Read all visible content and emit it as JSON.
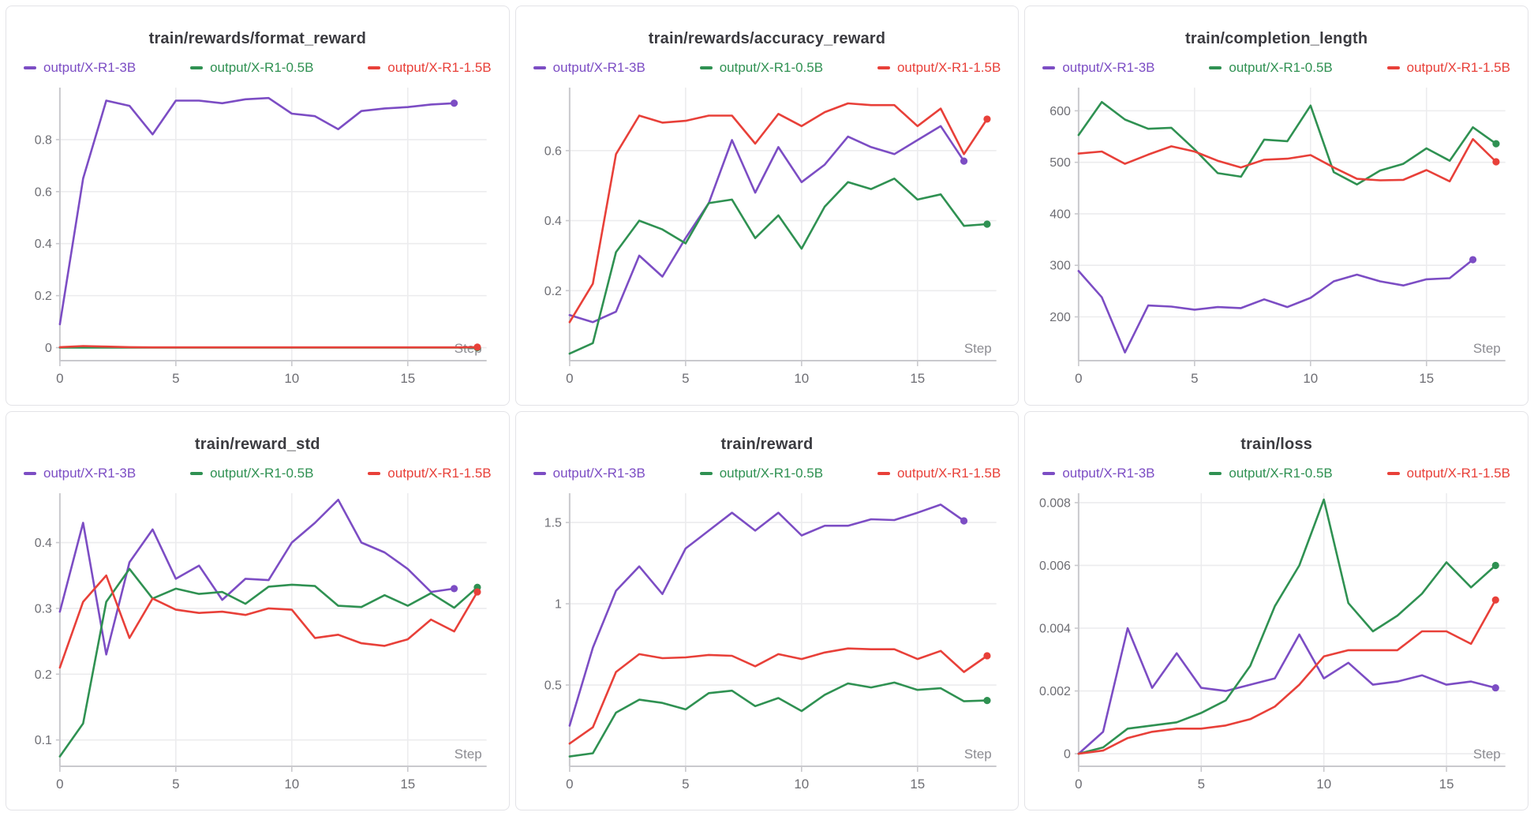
{
  "colors": {
    "purple": "#7C4DC4",
    "green": "#2F9152",
    "red": "#E84039",
    "grid": "#ececee",
    "axis": "#c9c9cd",
    "tick_text": "#6e6e74",
    "step_text": "#8c8c92",
    "title_text": "#3b3b40",
    "card_border": "#e3e3e7"
  },
  "legend_labels": [
    "output/X-R1-3B",
    "output/X-R1-0.5B",
    "output/X-R1-1.5B"
  ],
  "chart_data": [
    {
      "type": "line",
      "title": "train/rewards/format_reward",
      "xlabel": "Step",
      "xticks": [
        0,
        5,
        10,
        15
      ],
      "xlim": [
        0,
        18.4
      ],
      "ylim": [
        -0.05,
        1.0
      ],
      "yticks": [
        [
          0,
          "0"
        ],
        [
          0.2,
          "0.2"
        ],
        [
          0.4,
          "0.4"
        ],
        [
          0.6,
          "0.6"
        ],
        [
          0.8,
          "0.8"
        ]
      ],
      "series": [
        {
          "name": "output/X-R1-3B",
          "color_key": "purple",
          "values": [
            0.09,
            0.65,
            0.95,
            0.93,
            0.82,
            0.95,
            0.95,
            0.94,
            0.955,
            0.96,
            0.9,
            0.89,
            0.84,
            0.91,
            0.92,
            0.925,
            0.935,
            0.94
          ]
        },
        {
          "name": "output/X-R1-0.5B",
          "color_key": "green",
          "values": [
            0,
            0,
            0,
            0,
            0,
            0,
            0,
            0,
            0,
            0,
            0,
            0,
            0,
            0,
            0,
            0,
            0,
            0,
            0
          ]
        },
        {
          "name": "output/X-R1-1.5B",
          "color_key": "red",
          "values": [
            0.002,
            0.006,
            0.004,
            0.002,
            0.001,
            0.001,
            0.001,
            0.001,
            0.001,
            0.001,
            0.001,
            0.001,
            0.001,
            0.001,
            0.001,
            0.001,
            0.001,
            0.001,
            0.002
          ]
        }
      ]
    },
    {
      "type": "line",
      "title": "train/rewards/accuracy_reward",
      "xlabel": "Step",
      "xticks": [
        0,
        5,
        10,
        15
      ],
      "xlim": [
        0,
        18.4
      ],
      "ylim": [
        0,
        0.78
      ],
      "yticks": [
        [
          0.2,
          "0.2"
        ],
        [
          0.4,
          "0.4"
        ],
        [
          0.6,
          "0.6"
        ]
      ],
      "series": [
        {
          "name": "output/X-R1-3B",
          "color_key": "purple",
          "values": [
            0.13,
            0.11,
            0.14,
            0.3,
            0.24,
            0.35,
            0.45,
            0.63,
            0.48,
            0.61,
            0.51,
            0.56,
            0.64,
            0.61,
            0.59,
            0.63,
            0.67,
            0.57
          ]
        },
        {
          "name": "output/X-R1-0.5B",
          "color_key": "green",
          "values": [
            0.02,
            0.05,
            0.31,
            0.4,
            0.375,
            0.335,
            0.45,
            0.46,
            0.35,
            0.415,
            0.32,
            0.44,
            0.51,
            0.49,
            0.52,
            0.46,
            0.475,
            0.385,
            0.39
          ]
        },
        {
          "name": "output/X-R1-1.5B",
          "color_key": "red",
          "values": [
            0.11,
            0.22,
            0.59,
            0.7,
            0.68,
            0.685,
            0.7,
            0.7,
            0.62,
            0.705,
            0.67,
            0.71,
            0.735,
            0.73,
            0.73,
            0.67,
            0.72,
            0.59,
            0.69
          ]
        }
      ]
    },
    {
      "type": "line",
      "title": "train/completion_length",
      "xlabel": "Step",
      "xticks": [
        0,
        5,
        10,
        15
      ],
      "xlim": [
        0,
        18.4
      ],
      "ylim": [
        115,
        645
      ],
      "yticks": [
        [
          200,
          "200"
        ],
        [
          300,
          "300"
        ],
        [
          400,
          "400"
        ],
        [
          500,
          "500"
        ],
        [
          600,
          "600"
        ]
      ],
      "series": [
        {
          "name": "output/X-R1-3B",
          "color_key": "purple",
          "values": [
            289,
            238,
            131,
            222,
            220,
            214,
            219,
            217,
            234,
            219,
            237,
            269,
            282,
            269,
            261,
            273,
            275,
            311
          ]
        },
        {
          "name": "output/X-R1-0.5B",
          "color_key": "green",
          "values": [
            553,
            617,
            583,
            565,
            567,
            525,
            479,
            472,
            544,
            541,
            610,
            481,
            457,
            484,
            497,
            527,
            503,
            568,
            536
          ]
        },
        {
          "name": "output/X-R1-1.5B",
          "color_key": "red",
          "values": [
            517,
            521,
            497,
            515,
            531,
            521,
            503,
            490,
            505,
            507,
            514,
            490,
            468,
            465,
            466,
            485,
            463,
            545,
            501
          ]
        }
      ]
    },
    {
      "type": "line",
      "title": "train/reward_std",
      "xlabel": "Step",
      "xticks": [
        0,
        5,
        10,
        15
      ],
      "xlim": [
        0,
        18.4
      ],
      "ylim": [
        0.06,
        0.475
      ],
      "yticks": [
        [
          0.1,
          "0.1"
        ],
        [
          0.2,
          "0.2"
        ],
        [
          0.3,
          "0.3"
        ],
        [
          0.4,
          "0.4"
        ]
      ],
      "series": [
        {
          "name": "output/X-R1-3B",
          "color_key": "purple",
          "values": [
            0.295,
            0.43,
            0.23,
            0.37,
            0.42,
            0.345,
            0.365,
            0.313,
            0.345,
            0.343,
            0.4,
            0.43,
            0.465,
            0.4,
            0.385,
            0.36,
            0.325,
            0.33
          ]
        },
        {
          "name": "output/X-R1-0.5B",
          "color_key": "green",
          "values": [
            0.075,
            0.125,
            0.31,
            0.36,
            0.315,
            0.33,
            0.322,
            0.325,
            0.307,
            0.333,
            0.336,
            0.334,
            0.304,
            0.302,
            0.32,
            0.304,
            0.323,
            0.301,
            0.332
          ]
        },
        {
          "name": "output/X-R1-1.5B",
          "color_key": "red",
          "values": [
            0.21,
            0.31,
            0.35,
            0.255,
            0.315,
            0.298,
            0.293,
            0.295,
            0.29,
            0.3,
            0.298,
            0.255,
            0.26,
            0.247,
            0.243,
            0.253,
            0.283,
            0.265,
            0.325
          ]
        }
      ]
    },
    {
      "type": "line",
      "title": "train/reward",
      "xlabel": "Step",
      "xticks": [
        0,
        5,
        10,
        15
      ],
      "xlim": [
        0,
        18.4
      ],
      "ylim": [
        0,
        1.68
      ],
      "yticks": [
        [
          0.5,
          "0.5"
        ],
        [
          1,
          "1"
        ],
        [
          1.5,
          "1.5"
        ]
      ],
      "series": [
        {
          "name": "output/X-R1-3B",
          "color_key": "purple",
          "values": [
            0.25,
            0.73,
            1.08,
            1.23,
            1.06,
            1.34,
            1.45,
            1.56,
            1.45,
            1.56,
            1.42,
            1.48,
            1.48,
            1.52,
            1.515,
            1.56,
            1.61,
            1.51
          ]
        },
        {
          "name": "output/X-R1-0.5B",
          "color_key": "green",
          "values": [
            0.06,
            0.08,
            0.33,
            0.41,
            0.39,
            0.35,
            0.45,
            0.465,
            0.37,
            0.42,
            0.34,
            0.44,
            0.51,
            0.485,
            0.515,
            0.47,
            0.48,
            0.4,
            0.405
          ]
        },
        {
          "name": "output/X-R1-1.5B",
          "color_key": "red",
          "values": [
            0.14,
            0.24,
            0.58,
            0.69,
            0.665,
            0.67,
            0.685,
            0.68,
            0.615,
            0.69,
            0.66,
            0.7,
            0.725,
            0.72,
            0.72,
            0.66,
            0.71,
            0.58,
            0.68
          ]
        }
      ]
    },
    {
      "type": "line",
      "title": "train/loss",
      "xlabel": "Step",
      "xticks": [
        0,
        5,
        10,
        15
      ],
      "xlim": [
        0,
        17.4
      ],
      "ylim": [
        -0.0004,
        0.0083
      ],
      "yticks": [
        [
          0,
          "0"
        ],
        [
          0.002,
          "0.002"
        ],
        [
          0.004,
          "0.004"
        ],
        [
          0.006,
          "0.006"
        ],
        [
          0.008,
          "0.008"
        ]
      ],
      "series": [
        {
          "name": "output/X-R1-3B",
          "color_key": "purple",
          "values": [
            0,
            0.0007,
            0.004,
            0.0021,
            0.0032,
            0.0021,
            0.002,
            0.0022,
            0.0024,
            0.0038,
            0.0024,
            0.0029,
            0.0022,
            0.0023,
            0.0025,
            0.0022,
            0.0023,
            0.0021
          ]
        },
        {
          "name": "output/X-R1-0.5B",
          "color_key": "green",
          "values": [
            0,
            0.0002,
            0.0008,
            0.0009,
            0.001,
            0.0013,
            0.0017,
            0.0028,
            0.0047,
            0.006,
            0.0081,
            0.0048,
            0.0039,
            0.0044,
            0.0051,
            0.0061,
            0.0053,
            0.006
          ]
        },
        {
          "name": "output/X-R1-1.5B",
          "color_key": "red",
          "values": [
            0,
            0.0001,
            0.0005,
            0.0007,
            0.0008,
            0.0008,
            0.0009,
            0.0011,
            0.0015,
            0.0022,
            0.0031,
            0.0033,
            0.0033,
            0.0033,
            0.0039,
            0.0039,
            0.0035,
            0.0049
          ]
        }
      ]
    }
  ]
}
